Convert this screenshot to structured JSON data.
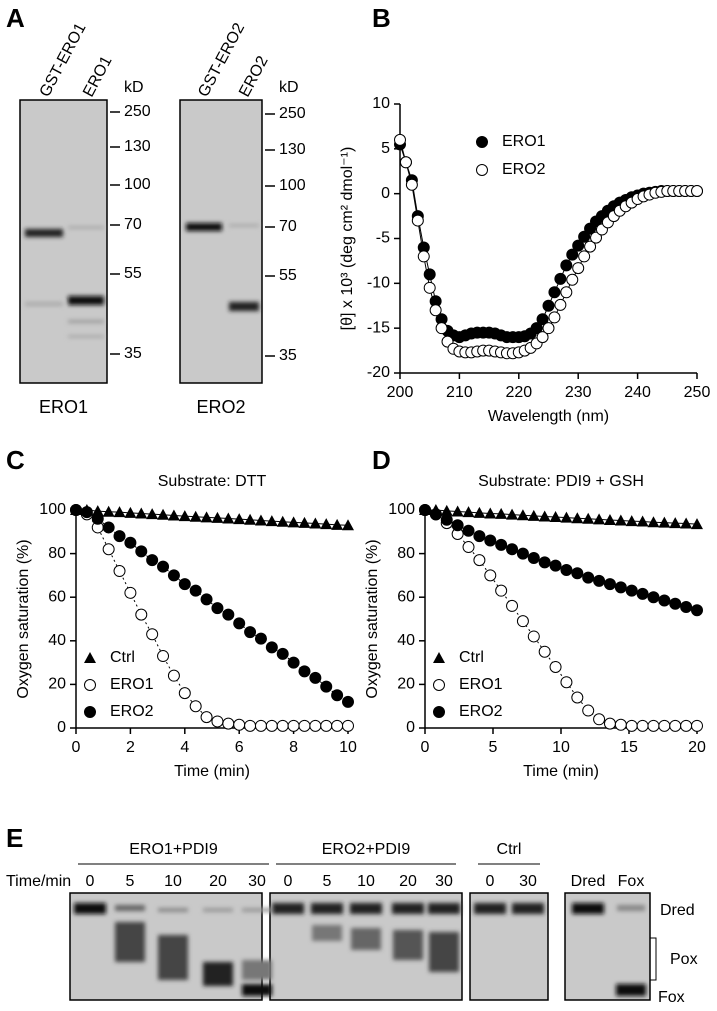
{
  "panel_labels": [
    "A",
    "B",
    "C",
    "D",
    "E"
  ],
  "panel_a": {
    "unit": "kD",
    "markers": [
      250,
      130,
      100,
      70,
      55,
      35
    ],
    "gels": [
      {
        "lanes": [
          "GST-ERO1",
          "ERO1"
        ],
        "label": "ERO1"
      },
      {
        "lanes": [
          "GST-ERO2",
          "ERO2"
        ],
        "label": "ERO2"
      }
    ]
  },
  "chart_data": [
    {
      "type": "line",
      "x_label": "Wavelength (nm)",
      "y_label": "[θ] x 10³ (deg cm² dmol⁻¹)",
      "x": [
        200,
        201,
        202,
        203,
        204,
        205,
        206,
        207,
        208,
        209,
        210,
        211,
        212,
        213,
        214,
        215,
        216,
        217,
        218,
        219,
        220,
        221,
        222,
        223,
        224,
        225,
        226,
        227,
        228,
        229,
        230,
        231,
        232,
        233,
        234,
        235,
        236,
        237,
        238,
        239,
        240,
        241,
        242,
        243,
        244,
        245,
        246,
        247,
        248,
        249,
        250
      ],
      "xlim": [
        200,
        250
      ],
      "xticks": [
        200,
        210,
        220,
        230,
        240,
        250
      ],
      "ylim": [
        -20,
        10
      ],
      "yticks": [
        -20,
        -15,
        -10,
        -5,
        0,
        5,
        10
      ],
      "legend": "upper right",
      "series": [
        {
          "name": "ERO1",
          "color": "#000000",
          "marker": "filled-circle",
          "line_style": "solid",
          "values": [
            5.5,
            3.5,
            1.5,
            -2.5,
            -6,
            -9,
            -12,
            -14,
            -15.3,
            -15.8,
            -16,
            -15.8,
            -15.6,
            -15.5,
            -15.5,
            -15.5,
            -15.6,
            -15.8,
            -16,
            -16,
            -16,
            -15.9,
            -15.6,
            -15,
            -14,
            -12.5,
            -11,
            -9.5,
            -8,
            -6.8,
            -5.8,
            -4.8,
            -3.9,
            -3.1,
            -2.5,
            -1.9,
            -1.4,
            -1,
            -0.7,
            -0.4,
            -0.2,
            0,
            0.1,
            0.2,
            0.3,
            0.3,
            0.3,
            0.3,
            0.3,
            0.3,
            0.3
          ]
        },
        {
          "name": "ERO2",
          "color": "#000000",
          "marker": "open-circle",
          "line_style": "solid",
          "values": [
            6,
            3.5,
            1,
            -3,
            -7,
            -10.5,
            -13,
            -15,
            -16.5,
            -17.3,
            -17.6,
            -17.7,
            -17.7,
            -17.6,
            -17.5,
            -17.5,
            -17.6,
            -17.7,
            -17.8,
            -17.8,
            -17.7,
            -17.5,
            -17.2,
            -16.7,
            -16,
            -15,
            -13.8,
            -12.4,
            -11,
            -9.6,
            -8.3,
            -7,
            -5.9,
            -4.9,
            -4,
            -3.2,
            -2.5,
            -1.9,
            -1.4,
            -1,
            -0.6,
            -0.3,
            -0.1,
            0.1,
            0.2,
            0.3,
            0.3,
            0.3,
            0.3,
            0.3,
            0.3
          ]
        }
      ]
    },
    {
      "type": "line",
      "title": "Substrate: DTT",
      "x_label": "Time (min)",
      "y_label": "Oxygen saturation (%)",
      "x": [
        0,
        0.4,
        0.8,
        1.2,
        1.6,
        2,
        2.4,
        2.8,
        3.2,
        3.6,
        4,
        4.4,
        4.8,
        5.2,
        5.6,
        6,
        6.4,
        6.8,
        7.2,
        7.6,
        8,
        8.4,
        8.8,
        9.2,
        9.6,
        10
      ],
      "xlim": [
        0,
        10
      ],
      "xticks": [
        0,
        2,
        4,
        6,
        8,
        10
      ],
      "ylim": [
        0,
        100
      ],
      "yticks": [
        0,
        20,
        40,
        60,
        80,
        100
      ],
      "legend": "lower left",
      "series": [
        {
          "name": "Ctrl",
          "color": "#000000",
          "marker": "triangle",
          "line_style": "solid",
          "values": [
            100,
            100,
            99.5,
            99.2,
            99,
            98.7,
            98.4,
            98.1,
            97.8,
            97.5,
            97.2,
            96.9,
            96.6,
            96.4,
            96.1,
            95.8,
            95.5,
            95.2,
            94.9,
            94.6,
            94.3,
            94.1,
            93.8,
            93.5,
            93.2,
            93
          ]
        },
        {
          "name": "ERO1",
          "color": "#000000",
          "marker": "open-circle",
          "line_style": "dotted",
          "values": [
            100,
            98,
            92,
            82,
            72,
            62,
            52,
            43,
            33,
            24,
            16,
            10,
            5,
            3,
            2,
            1.5,
            1,
            1,
            1,
            1,
            1,
            1,
            1,
            1,
            1,
            1
          ]
        },
        {
          "name": "ERO2",
          "color": "#000000",
          "marker": "filled-circle",
          "line_style": "dotted",
          "values": [
            100,
            99,
            96,
            92,
            88,
            85,
            81,
            77,
            74,
            70,
            66,
            63,
            59,
            55,
            52,
            48,
            44,
            41,
            37,
            34,
            30,
            26,
            23,
            19,
            15,
            12
          ]
        }
      ]
    },
    {
      "type": "line",
      "title": "Substrate: PDI9 + GSH",
      "x_label": "Time (min)",
      "y_label": "Oxygen saturation (%)",
      "x": [
        0,
        0.8,
        1.6,
        2.4,
        3.2,
        4,
        4.8,
        5.6,
        6.4,
        7.2,
        8,
        8.8,
        9.6,
        10.4,
        11.2,
        12,
        12.8,
        13.6,
        14.4,
        15.2,
        16,
        16.8,
        17.6,
        18.4,
        19.2,
        20
      ],
      "xlim": [
        0,
        20
      ],
      "xticks": [
        0,
        5,
        10,
        15,
        20
      ],
      "ylim": [
        0,
        100
      ],
      "yticks": [
        0,
        20,
        40,
        60,
        80,
        100
      ],
      "legend": "lower left",
      "series": [
        {
          "name": "Ctrl",
          "color": "#000000",
          "marker": "triangle",
          "line_style": "solid",
          "values": [
            100,
            100,
            99.6,
            99.3,
            99,
            98.7,
            98.4,
            98.2,
            97.9,
            97.6,
            97.3,
            97,
            96.8,
            96.5,
            96.2,
            96,
            95.7,
            95.4,
            95.2,
            94.9,
            94.7,
            94.4,
            94.2,
            94,
            93.8,
            93.5
          ]
        },
        {
          "name": "ERO1",
          "color": "#000000",
          "marker": "open-circle",
          "line_style": "dotted",
          "values": [
            100,
            98,
            94,
            89,
            83,
            77,
            70,
            63,
            56,
            49,
            42,
            35,
            28,
            21,
            14,
            8,
            4,
            2,
            1.5,
            1,
            1,
            1,
            1,
            1,
            1,
            1
          ]
        },
        {
          "name": "ERO2",
          "color": "#000000",
          "marker": "filled-circle",
          "line_style": "dotted",
          "values": [
            100,
            98,
            95.5,
            93,
            90.5,
            88,
            86,
            84,
            82,
            80,
            78,
            76,
            74.5,
            72.5,
            71,
            69,
            67.5,
            66,
            64.5,
            63,
            61.5,
            60,
            58.5,
            57,
            55.5,
            54
          ]
        }
      ]
    }
  ],
  "panel_e": {
    "time_label": "Time/min",
    "groups": [
      {
        "label": "ERO1+PDI9",
        "times": [
          0,
          5,
          10,
          20,
          30
        ]
      },
      {
        "label": "ERO2+PDI9",
        "times": [
          0,
          5,
          10,
          20,
          30
        ]
      },
      {
        "label": "Ctrl",
        "times": [
          0,
          30
        ]
      }
    ],
    "standards": [
      "Dred",
      "Fox"
    ],
    "bands": [
      "Dred",
      "Pox",
      "Fox"
    ]
  }
}
